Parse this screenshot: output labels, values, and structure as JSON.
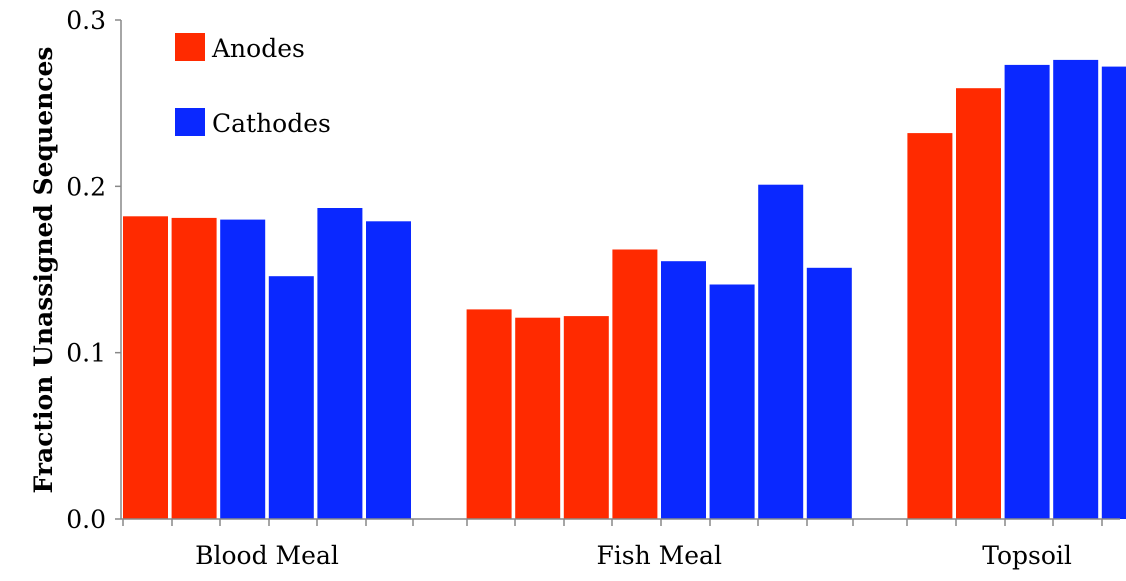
{
  "chart_data": {
    "type": "bar",
    "ylabel": "Fraction Unassigned Sequences",
    "ylim": [
      0,
      0.3
    ],
    "yticks": [
      "0.0",
      "0.1",
      "0.2",
      "0.3"
    ],
    "grid": false,
    "legend_position": "top-left",
    "colors": {
      "Anodes": "#ff2a00",
      "Cathodes": "#0a28ff"
    },
    "legend": [
      {
        "name": "Anodes",
        "color": "#ff2a00"
      },
      {
        "name": "Cathodes",
        "color": "#0a28ff"
      }
    ],
    "groups": [
      {
        "label": "Blood Meal",
        "bars": [
          {
            "series": "Anodes",
            "value": 0.182
          },
          {
            "series": "Anodes",
            "value": 0.181
          },
          {
            "series": "Cathodes",
            "value": 0.18
          },
          {
            "series": "Cathodes",
            "value": 0.146
          },
          {
            "series": "Cathodes",
            "value": 0.187
          },
          {
            "series": "Cathodes",
            "value": 0.179
          }
        ]
      },
      {
        "label": "Fish Meal",
        "bars": [
          {
            "series": "Anodes",
            "value": 0.126
          },
          {
            "series": "Anodes",
            "value": 0.121
          },
          {
            "series": "Anodes",
            "value": 0.122
          },
          {
            "series": "Anodes",
            "value": 0.162
          },
          {
            "series": "Cathodes",
            "value": 0.155
          },
          {
            "series": "Cathodes",
            "value": 0.141
          },
          {
            "series": "Cathodes",
            "value": 0.201
          },
          {
            "series": "Cathodes",
            "value": 0.151
          }
        ]
      },
      {
        "label": "Topsoil",
        "bars": [
          {
            "series": "Anodes",
            "value": 0.232
          },
          {
            "series": "Anodes",
            "value": 0.259
          },
          {
            "series": "Cathodes",
            "value": 0.273
          },
          {
            "series": "Cathodes",
            "value": 0.276
          },
          {
            "series": "Cathodes",
            "value": 0.272
          }
        ]
      }
    ]
  }
}
